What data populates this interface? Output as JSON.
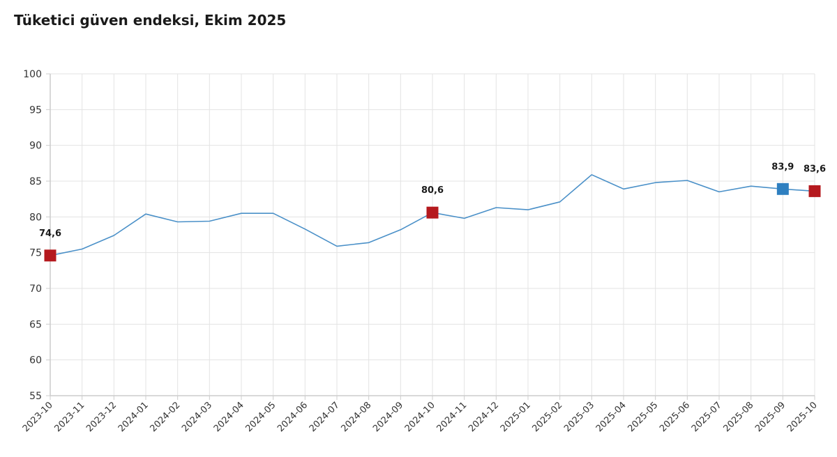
{
  "chart_data": {
    "type": "line",
    "title": "Tüketici güven endeksi, Ekim 2025",
    "xlabel": "",
    "ylabel": "",
    "ylim": [
      55,
      100
    ],
    "yticks": [
      55,
      60,
      65,
      70,
      75,
      80,
      85,
      90,
      95,
      100
    ],
    "grid": true,
    "legend": "none",
    "categories": [
      "2023-10",
      "2023-11",
      "2023-12",
      "2024-01",
      "2024-02",
      "2024-03",
      "2024-04",
      "2024-05",
      "2024-06",
      "2024-07",
      "2024-08",
      "2024-09",
      "2024-10",
      "2024-11",
      "2024-12",
      "2025-01",
      "2025-02",
      "2025-03",
      "2025-04",
      "2025-05",
      "2025-06",
      "2025-07",
      "2025-08",
      "2025-09",
      "2025-10"
    ],
    "series": [
      {
        "color": "#4a90c8",
        "values": [
          74.6,
          75.5,
          77.4,
          80.4,
          79.3,
          79.4,
          80.5,
          80.5,
          78.3,
          75.9,
          76.4,
          78.2,
          80.6,
          79.8,
          81.3,
          81.0,
          82.1,
          85.9,
          83.9,
          84.8,
          85.1,
          83.5,
          84.3,
          83.9,
          83.6
        ]
      }
    ],
    "highlighted_points": [
      {
        "category": "2023-10",
        "value": 74.6,
        "label": "74,6",
        "color": "#b5191e"
      },
      {
        "category": "2024-10",
        "value": 80.6,
        "label": "80,6",
        "color": "#b5191e"
      },
      {
        "category": "2025-09",
        "value": 83.9,
        "label": "83,9",
        "color": "#2e7fc0"
      },
      {
        "category": "2025-10",
        "value": 83.6,
        "label": "83,6",
        "color": "#b5191e"
      }
    ]
  }
}
